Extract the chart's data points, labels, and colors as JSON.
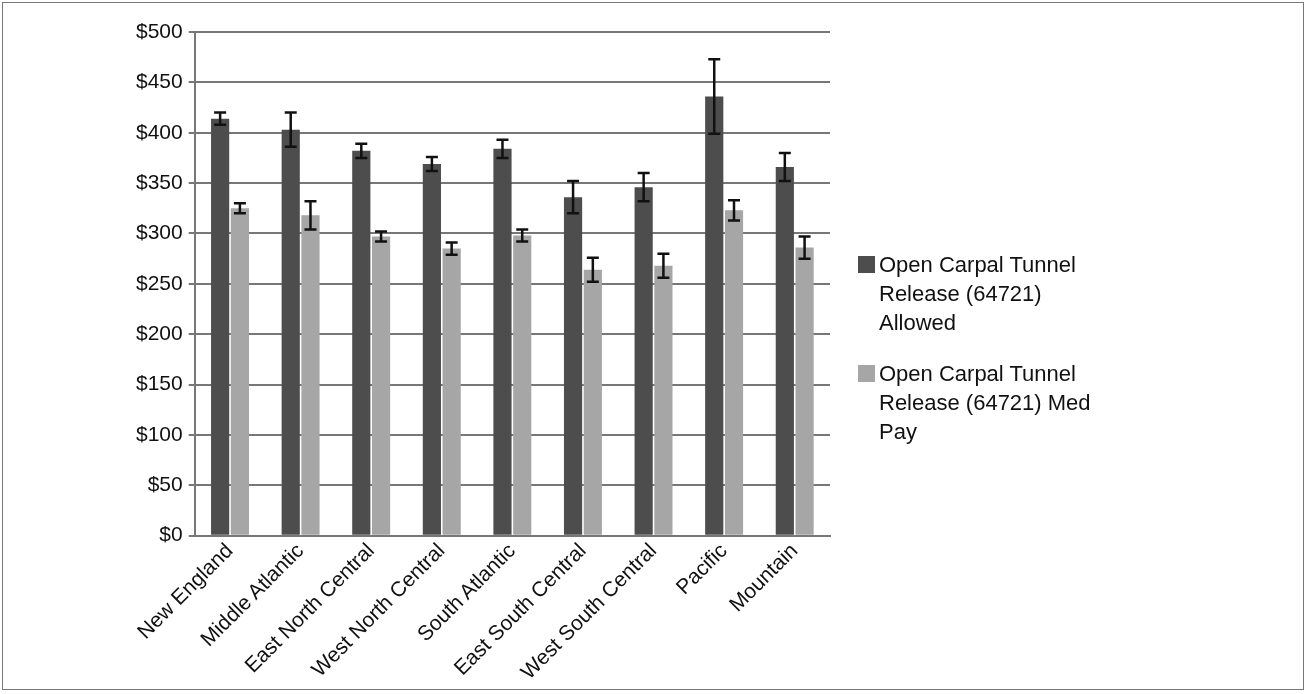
{
  "chart_data": {
    "type": "bar",
    "categories": [
      "New England",
      "Middle Atlantic",
      "East North Central",
      "West North Central",
      "South Atlantic",
      "East South Central",
      "West South Central",
      "Pacific",
      "Mountain"
    ],
    "series": [
      {
        "name": "Open Carpal Tunnel Release (64721) Allowed",
        "color": "#4d4d4d",
        "values": [
          414,
          403,
          382,
          369,
          384,
          336,
          346,
          436,
          366
        ],
        "errors": [
          6,
          17,
          7,
          7,
          9,
          16,
          14,
          37,
          14
        ]
      },
      {
        "name": "Open Carpal Tunnel Release (64721) Med Pay",
        "color": "#a6a6a6",
        "values": [
          325,
          318,
          297,
          285,
          298,
          264,
          268,
          323,
          286
        ],
        "errors": [
          5,
          14,
          5,
          6,
          6,
          12,
          12,
          10,
          11
        ]
      }
    ],
    "ylim": [
      0,
      500
    ],
    "yticks": [
      {
        "value": 0,
        "label": "$0"
      },
      {
        "value": 50,
        "label": "$50"
      },
      {
        "value": 100,
        "label": "$100"
      },
      {
        "value": 150,
        "label": "$150"
      },
      {
        "value": 200,
        "label": "$200"
      },
      {
        "value": 250,
        "label": "$250"
      },
      {
        "value": 300,
        "label": "$300"
      },
      {
        "value": 350,
        "label": "$350"
      },
      {
        "value": 400,
        "label": "$400"
      },
      {
        "value": 450,
        "label": "$450"
      },
      {
        "value": 500,
        "label": "$500"
      }
    ],
    "grid": "y",
    "legend": "right"
  }
}
